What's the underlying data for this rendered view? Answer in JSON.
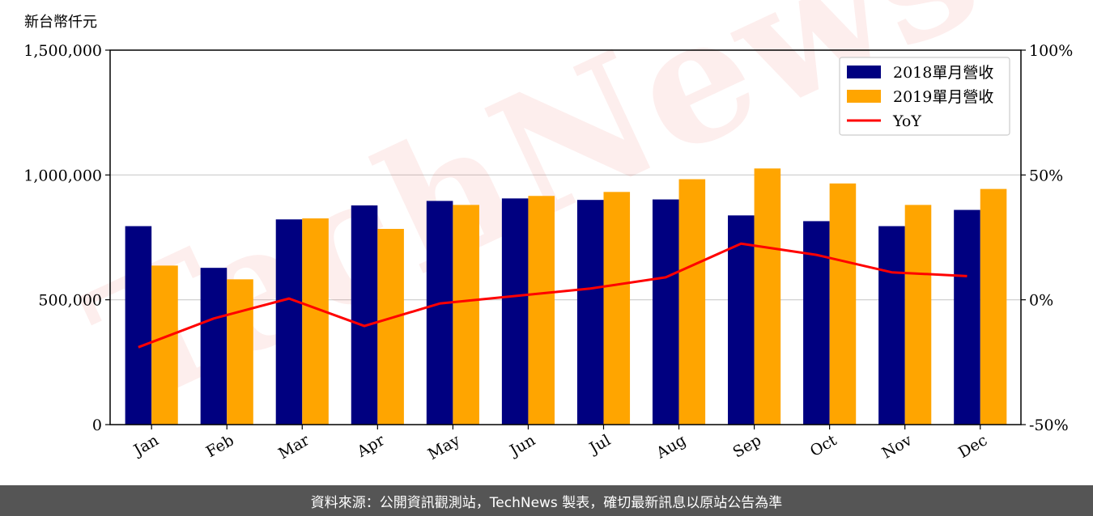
{
  "watermark": "TechNews",
  "footer": {
    "source": "資料來源：公開資訊觀測站，TechNews 製表，確切最新訊息以原站公告為準"
  },
  "chart_data": {
    "type": "bar",
    "ylabel": "新台幣仟元",
    "categories": [
      "Jan",
      "Feb",
      "Mar",
      "Apr",
      "May",
      "Jun",
      "Jul",
      "Aug",
      "Sep",
      "Oct",
      "Nov",
      "Dec"
    ],
    "series": [
      {
        "name": "2018單月營收",
        "type": "bar",
        "color": "#000080",
        "values": [
          795000,
          628000,
          822000,
          878000,
          896000,
          906000,
          900000,
          902000,
          838000,
          815000,
          795000,
          860000
        ]
      },
      {
        "name": "2019單月營收",
        "type": "bar",
        "color": "#FFA500",
        "values": [
          637000,
          582000,
          826000,
          784000,
          880000,
          916000,
          932000,
          983000,
          1026000,
          966000,
          880000,
          944000
        ]
      },
      {
        "name": "YoY",
        "type": "line",
        "axis": "right",
        "color": "#FF0000",
        "values": [
          -19.0,
          -7.5,
          0.5,
          -10.5,
          -1.5,
          1.5,
          4.5,
          9.0,
          22.5,
          18.0,
          11.0,
          9.5
        ]
      }
    ],
    "ylim": [
      0,
      1500000
    ],
    "yticks": [
      "0",
      "500,000",
      "1,000,000",
      "1,500,000"
    ],
    "y2lim": [
      -50,
      100
    ],
    "y2ticks": [
      "-50%",
      "0%",
      "50%",
      "100%"
    ],
    "grid": "horizontal",
    "legend": "top-right"
  }
}
